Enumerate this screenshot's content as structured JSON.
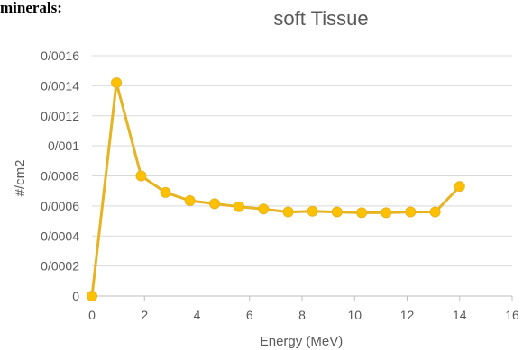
{
  "top_fragment": "minerals:",
  "chart_data": {
    "type": "line",
    "title": "soft Tissue",
    "xlabel": "Energy (MeV)",
    "ylabel": "#/cm2",
    "xlim": [
      0,
      16
    ],
    "ylim": [
      0,
      0.0016
    ],
    "x_ticks": [
      0,
      2,
      4,
      6,
      8,
      10,
      12,
      14,
      16
    ],
    "x_tick_labels": [
      "0",
      "2",
      "4",
      "6",
      "8",
      "10",
      "12",
      "14",
      "16"
    ],
    "y_ticks": [
      0,
      0.0002,
      0.0004,
      0.0006,
      0.0008,
      0.001,
      0.0012,
      0.0014,
      0.0016
    ],
    "y_tick_labels": [
      "0",
      "0/0002",
      "0/0004",
      "0/0006",
      "0/0008",
      "0/001",
      "0/0012",
      "0/0014",
      "0/0016"
    ],
    "grid": true,
    "legend": "none",
    "series": [
      {
        "color": "#FFC000",
        "line_color": "#E6B422",
        "x": [
          0,
          0.93,
          1.87,
          2.8,
          3.73,
          4.67,
          5.6,
          6.53,
          7.47,
          8.4,
          9.33,
          10.27,
          11.2,
          12.13,
          13.07,
          14.0
        ],
        "y": [
          0.0,
          0.00142,
          0.0008,
          0.00069,
          0.000635,
          0.000615,
          0.000595,
          0.00058,
          0.00056,
          0.000565,
          0.00056,
          0.000555,
          0.000555,
          0.00056,
          0.00056,
          0.00073
        ]
      }
    ]
  }
}
